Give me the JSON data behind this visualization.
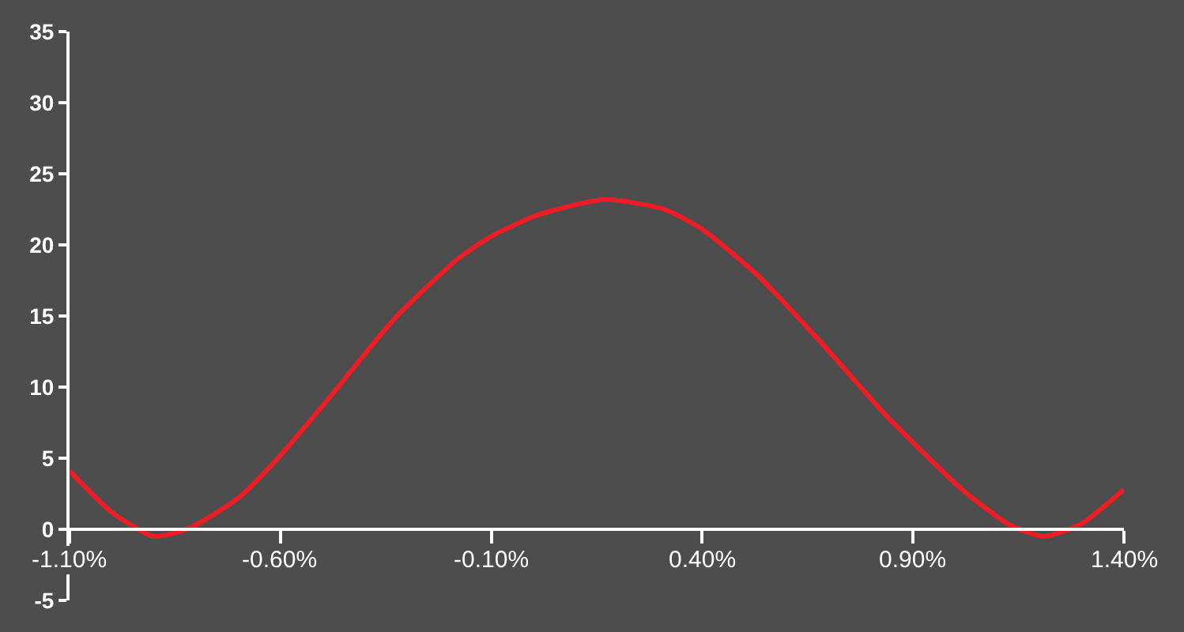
{
  "chart_data": {
    "type": "line",
    "x": [
      -1.1,
      -1.0,
      -0.9,
      -0.815,
      -0.7,
      -0.6,
      -0.48,
      -0.33,
      -0.18,
      -0.1,
      0.01,
      0.17,
      0.31,
      0.4,
      0.53,
      0.68,
      0.83,
      0.9,
      1.02,
      1.13,
      1.21,
      1.3,
      1.4
    ],
    "series": [
      {
        "color": "#ed1c24",
        "values": [
          4.1,
          1.2,
          -0.5,
          0.1,
          2.2,
          5.2,
          9.4,
          14.8,
          19.0,
          20.6,
          22.1,
          23.2,
          22.5,
          21.1,
          17.9,
          13.2,
          8.2,
          6.1,
          2.7,
          0.3,
          -0.5,
          0.4,
          2.8
        ]
      }
    ],
    "xlim": [
      -1.1,
      1.4
    ],
    "xticks": [
      {
        "value": -1.1,
        "label": "-1.10%"
      },
      {
        "value": -0.6,
        "label": "-0.60%"
      },
      {
        "value": -0.1,
        "label": "-0.10%"
      },
      {
        "value": 0.4,
        "label": "0.40%"
      },
      {
        "value": 0.9,
        "label": "0.90%"
      },
      {
        "value": 1.4,
        "label": "1.40%"
      }
    ],
    "ylim": [
      -5,
      35
    ],
    "yticks": [
      -5,
      0,
      5,
      10,
      15,
      20,
      25,
      30,
      35
    ],
    "grid": false,
    "marker": "none",
    "line_style": "solid"
  }
}
